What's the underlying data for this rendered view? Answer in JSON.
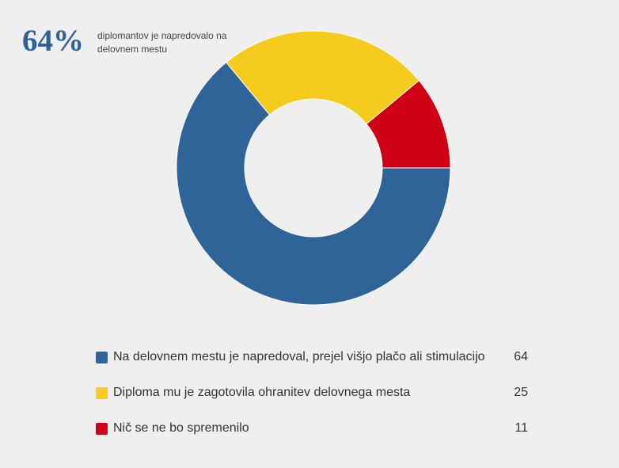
{
  "headline": {
    "percent": "64%",
    "caption": "diplomantov je napredovalo na delovnem mestu"
  },
  "chart_data": {
    "type": "pie",
    "donut": true,
    "start_angle_deg": 0,
    "direction": "clockwise",
    "categories": [
      "Na delovnem mestu je napredoval, prejel višjo plačo ali stimulacijo",
      "Diploma mu je zagotovila ohranitev delovnega mesta",
      "Nič se ne bo spremenilo"
    ],
    "values": [
      64,
      25,
      11
    ],
    "colors": [
      "#2e6497",
      "#f5cb1e",
      "#cf0016"
    ],
    "legend_position": "bottom"
  }
}
